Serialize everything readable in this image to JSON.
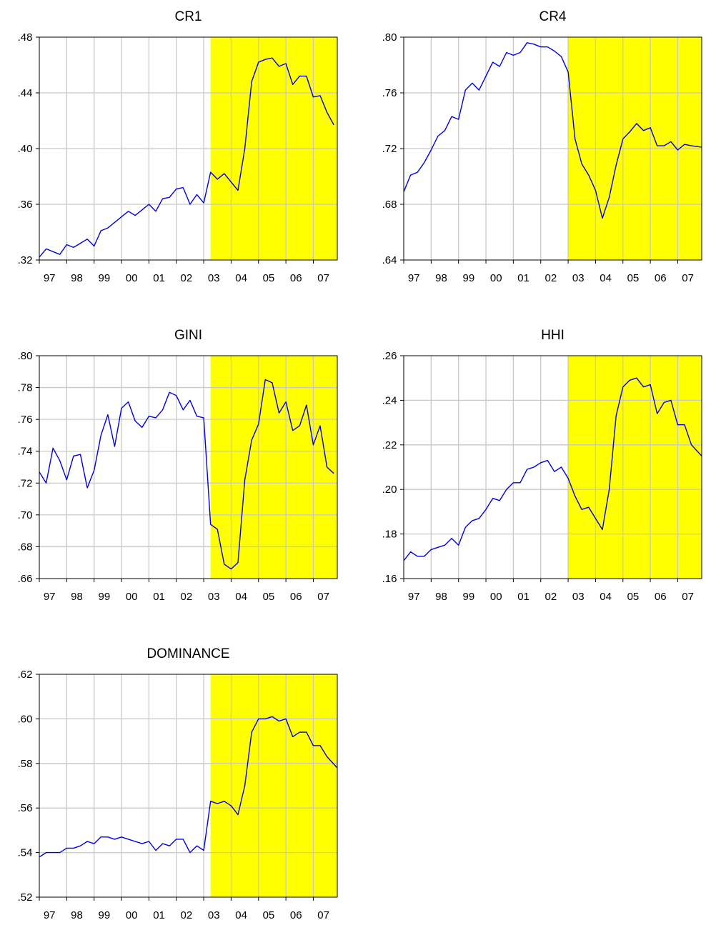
{
  "chart_data": [
    {
      "type": "line",
      "title": "CR1",
      "xlabel": "",
      "ylabel": "",
      "ylim": [
        0.32,
        0.48
      ],
      "yticks": [
        0.32,
        0.36,
        0.4,
        0.44,
        0.48
      ],
      "ytick_labels": [
        ".32",
        ".36",
        ".40",
        ".44",
        ".48"
      ],
      "xlim": [
        1997.0,
        2007.875
      ],
      "xticks": [
        1997,
        1998,
        1999,
        2000,
        2001,
        2002,
        2003,
        2004,
        2005,
        2006,
        2007
      ],
      "xtick_labels": [
        "97",
        "98",
        "99",
        "00",
        "01",
        "02",
        "03",
        "04",
        "05",
        "06",
        "07"
      ],
      "grid": true,
      "line_color": "#0000e6",
      "shaded_region": {
        "start": 2003.25,
        "end": 2007.875,
        "color": "#ffff00"
      },
      "x": [
        1997.0,
        1997.25,
        1997.5,
        1997.75,
        1998.0,
        1998.25,
        1998.5,
        1998.75,
        1999.0,
        1999.25,
        1999.5,
        1999.75,
        2000.0,
        2000.25,
        2000.5,
        2000.75,
        2001.0,
        2001.25,
        2001.5,
        2001.75,
        2002.0,
        2002.25,
        2002.5,
        2002.75,
        2003.0,
        2003.25,
        2003.5,
        2003.75,
        2004.0,
        2004.25,
        2004.5,
        2004.75,
        2005.0,
        2005.25,
        2005.5,
        2005.75,
        2006.0,
        2006.25,
        2006.5,
        2006.75,
        2007.0,
        2007.25,
        2007.5,
        2007.75
      ],
      "series": [
        {
          "values": [
            0.322,
            0.328,
            0.326,
            0.324,
            0.331,
            0.329,
            0.332,
            0.335,
            0.33,
            0.341,
            0.343,
            0.347,
            0.351,
            0.355,
            0.352,
            0.356,
            0.36,
            0.355,
            0.364,
            0.365,
            0.371,
            0.372,
            0.36,
            0.367,
            0.361,
            0.383,
            0.378,
            0.382,
            0.376,
            0.37,
            0.4,
            0.448,
            0.462,
            0.464,
            0.465,
            0.459,
            0.461,
            0.446,
            0.452,
            0.452,
            0.437,
            0.438,
            0.426,
            0.417
          ]
        }
      ]
    },
    {
      "type": "line",
      "title": "CR4",
      "xlabel": "",
      "ylabel": "",
      "ylim": [
        0.64,
        0.8
      ],
      "yticks": [
        0.64,
        0.68,
        0.72,
        0.76,
        0.8
      ],
      "ytick_labels": [
        ".64",
        ".68",
        ".72",
        ".76",
        ".80"
      ],
      "xlim": [
        1997.0,
        2007.875
      ],
      "xticks": [
        1997,
        1998,
        1999,
        2000,
        2001,
        2002,
        2003,
        2004,
        2005,
        2006,
        2007
      ],
      "xtick_labels": [
        "97",
        "98",
        "99",
        "00",
        "01",
        "02",
        "03",
        "04",
        "05",
        "06",
        "07"
      ],
      "grid": true,
      "line_color": "#0000e6",
      "shaded_region": {
        "start": 2003.0,
        "end": 2007.875,
        "color": "#ffff00"
      },
      "x": [
        1997.0,
        1997.25,
        1997.5,
        1997.75,
        1998.0,
        1998.25,
        1998.5,
        1998.75,
        1999.0,
        1999.25,
        1999.5,
        1999.75,
        2000.0,
        2000.25,
        2000.5,
        2000.75,
        2001.0,
        2001.25,
        2001.5,
        2001.75,
        2002.0,
        2002.25,
        2002.5,
        2002.75,
        2003.0,
        2003.25,
        2003.5,
        2003.75,
        2004.0,
        2004.25,
        2004.5,
        2004.75,
        2005.0,
        2005.25,
        2005.5,
        2005.75,
        2006.0,
        2006.25,
        2006.5,
        2006.75,
        2007.0,
        2007.25,
        2007.5,
        2007.875
      ],
      "series": [
        {
          "values": [
            0.689,
            0.701,
            0.703,
            0.71,
            0.719,
            0.729,
            0.733,
            0.743,
            0.741,
            0.762,
            0.767,
            0.762,
            0.772,
            0.782,
            0.779,
            0.789,
            0.787,
            0.789,
            0.796,
            0.795,
            0.793,
            0.793,
            0.79,
            0.786,
            0.775,
            0.727,
            0.709,
            0.701,
            0.69,
            0.67,
            0.685,
            0.708,
            0.727,
            0.732,
            0.738,
            0.733,
            0.735,
            0.722,
            0.722,
            0.725,
            0.719,
            0.723,
            0.722,
            0.721
          ]
        }
      ]
    },
    {
      "type": "line",
      "title": "GINI",
      "xlabel": "",
      "ylabel": "",
      "ylim": [
        0.66,
        0.8
      ],
      "yticks": [
        0.66,
        0.68,
        0.7,
        0.72,
        0.74,
        0.76,
        0.78,
        0.8
      ],
      "ytick_labels": [
        ".66",
        ".68",
        ".70",
        ".72",
        ".74",
        ".76",
        ".78",
        ".80"
      ],
      "xlim": [
        1997.0,
        2007.875
      ],
      "xticks": [
        1997,
        1998,
        1999,
        2000,
        2001,
        2002,
        2003,
        2004,
        2005,
        2006,
        2007
      ],
      "xtick_labels": [
        "97",
        "98",
        "99",
        "00",
        "01",
        "02",
        "03",
        "04",
        "05",
        "06",
        "07"
      ],
      "grid": true,
      "line_color": "#0000e6",
      "shaded_region": {
        "start": 2003.25,
        "end": 2007.875,
        "color": "#ffff00"
      },
      "x": [
        1997.0,
        1997.25,
        1997.5,
        1997.75,
        1998.0,
        1998.25,
        1998.5,
        1998.75,
        1999.0,
        1999.25,
        1999.5,
        1999.75,
        2000.0,
        2000.25,
        2000.5,
        2000.75,
        2001.0,
        2001.25,
        2001.5,
        2001.75,
        2002.0,
        2002.25,
        2002.5,
        2002.75,
        2003.0,
        2003.25,
        2003.5,
        2003.75,
        2004.0,
        2004.25,
        2004.5,
        2004.75,
        2005.0,
        2005.25,
        2005.5,
        2005.75,
        2006.0,
        2006.25,
        2006.5,
        2006.75,
        2007.0,
        2007.25,
        2007.5,
        2007.75
      ],
      "series": [
        {
          "values": [
            0.727,
            0.72,
            0.742,
            0.734,
            0.722,
            0.737,
            0.738,
            0.717,
            0.728,
            0.75,
            0.763,
            0.743,
            0.767,
            0.771,
            0.759,
            0.755,
            0.762,
            0.761,
            0.766,
            0.777,
            0.775,
            0.766,
            0.772,
            0.762,
            0.761,
            0.694,
            0.691,
            0.669,
            0.666,
            0.67,
            0.722,
            0.747,
            0.757,
            0.785,
            0.783,
            0.764,
            0.771,
            0.753,
            0.756,
            0.769,
            0.744,
            0.756,
            0.73,
            0.726
          ]
        }
      ]
    },
    {
      "type": "line",
      "title": "HHI",
      "xlabel": "",
      "ylabel": "",
      "ylim": [
        0.16,
        0.26
      ],
      "yticks": [
        0.16,
        0.18,
        0.2,
        0.22,
        0.24,
        0.26
      ],
      "ytick_labels": [
        ".16",
        ".18",
        ".20",
        ".22",
        ".24",
        ".26"
      ],
      "xlim": [
        1997.0,
        2007.875
      ],
      "xticks": [
        1997,
        1998,
        1999,
        2000,
        2001,
        2002,
        2003,
        2004,
        2005,
        2006,
        2007
      ],
      "xtick_labels": [
        "97",
        "98",
        "99",
        "00",
        "01",
        "02",
        "03",
        "04",
        "05",
        "06",
        "07"
      ],
      "grid": true,
      "line_color": "#0000e6",
      "shaded_region": {
        "start": 2003.0,
        "end": 2007.875,
        "color": "#ffff00"
      },
      "x": [
        1997.0,
        1997.25,
        1997.5,
        1997.75,
        1998.0,
        1998.25,
        1998.5,
        1998.75,
        1999.0,
        1999.25,
        1999.5,
        1999.75,
        2000.0,
        2000.25,
        2000.5,
        2000.75,
        2001.0,
        2001.25,
        2001.5,
        2001.75,
        2002.0,
        2002.25,
        2002.5,
        2002.75,
        2003.0,
        2003.25,
        2003.5,
        2003.75,
        2004.0,
        2004.25,
        2004.5,
        2004.75,
        2005.0,
        2005.25,
        2005.5,
        2005.75,
        2006.0,
        2006.25,
        2006.5,
        2006.75,
        2007.0,
        2007.25,
        2007.5,
        2007.875
      ],
      "series": [
        {
          "values": [
            0.168,
            0.172,
            0.17,
            0.17,
            0.173,
            0.174,
            0.175,
            0.178,
            0.175,
            0.183,
            0.186,
            0.187,
            0.191,
            0.196,
            0.195,
            0.2,
            0.203,
            0.203,
            0.209,
            0.21,
            0.212,
            0.213,
            0.208,
            0.21,
            0.205,
            0.197,
            0.191,
            0.192,
            0.187,
            0.182,
            0.2,
            0.233,
            0.246,
            0.249,
            0.25,
            0.246,
            0.247,
            0.234,
            0.239,
            0.24,
            0.229,
            0.229,
            0.22,
            0.215
          ]
        }
      ]
    },
    {
      "type": "line",
      "title": "DOMINANCE",
      "xlabel": "",
      "ylabel": "",
      "ylim": [
        0.52,
        0.62
      ],
      "yticks": [
        0.52,
        0.54,
        0.56,
        0.58,
        0.6,
        0.62
      ],
      "ytick_labels": [
        ".52",
        ".54",
        ".56",
        ".58",
        ".60",
        ".62"
      ],
      "xlim": [
        1997.0,
        2007.875
      ],
      "xticks": [
        1997,
        1998,
        1999,
        2000,
        2001,
        2002,
        2003,
        2004,
        2005,
        2006,
        2007
      ],
      "xtick_labels": [
        "97",
        "98",
        "99",
        "00",
        "01",
        "02",
        "03",
        "04",
        "05",
        "06",
        "07"
      ],
      "grid": true,
      "line_color": "#0000e6",
      "shaded_region": {
        "start": 2003.25,
        "end": 2007.875,
        "color": "#ffff00"
      },
      "x": [
        1997.0,
        1997.25,
        1997.5,
        1997.75,
        1998.0,
        1998.25,
        1998.5,
        1998.75,
        1999.0,
        1999.25,
        1999.5,
        1999.75,
        2000.0,
        2000.25,
        2000.5,
        2000.75,
        2001.0,
        2001.25,
        2001.5,
        2001.75,
        2002.0,
        2002.25,
        2002.5,
        2002.75,
        2003.0,
        2003.25,
        2003.5,
        2003.75,
        2004.0,
        2004.25,
        2004.5,
        2004.75,
        2005.0,
        2005.25,
        2005.5,
        2005.75,
        2006.0,
        2006.25,
        2006.5,
        2006.75,
        2007.0,
        2007.25,
        2007.5,
        2007.875
      ],
      "series": [
        {
          "values": [
            0.538,
            0.54,
            0.54,
            0.54,
            0.542,
            0.542,
            0.543,
            0.545,
            0.544,
            0.547,
            0.547,
            0.546,
            0.547,
            0.546,
            0.545,
            0.544,
            0.545,
            0.541,
            0.544,
            0.543,
            0.546,
            0.546,
            0.54,
            0.543,
            0.541,
            0.563,
            0.562,
            0.563,
            0.561,
            0.557,
            0.57,
            0.594,
            0.6,
            0.6,
            0.601,
            0.599,
            0.6,
            0.592,
            0.594,
            0.594,
            0.588,
            0.588,
            0.583,
            0.578
          ]
        }
      ]
    }
  ]
}
